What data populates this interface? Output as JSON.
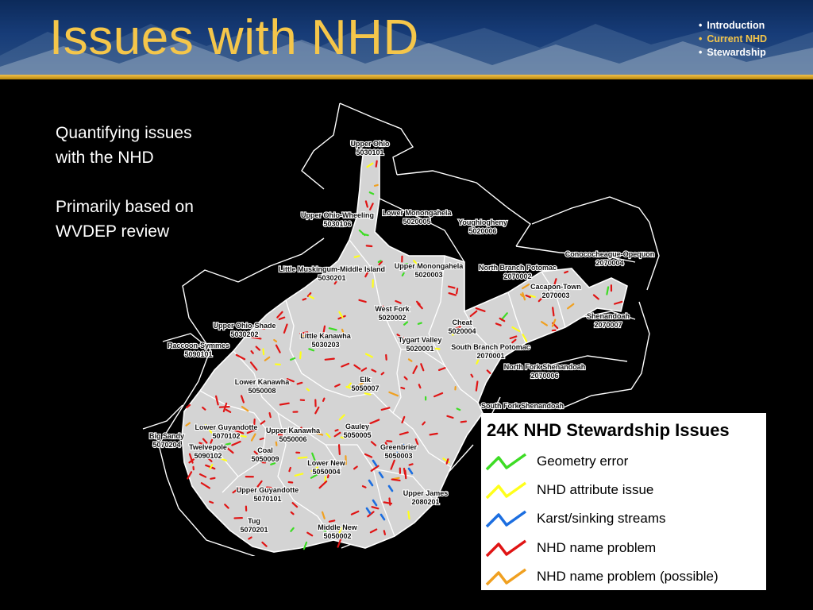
{
  "header": {
    "title": "Issues with NHD",
    "nav": [
      {
        "label": "Introduction",
        "active": false
      },
      {
        "label": "Current NHD",
        "active": true
      },
      {
        "label": "Stewardship",
        "active": false
      }
    ]
  },
  "body": {
    "text1": [
      "Quantifying issues",
      "with the NHD"
    ],
    "text2": [
      "Primarily based on",
      "WVDEP review"
    ]
  },
  "colors": {
    "title": "#f5c64a",
    "map_fill": "#d4d4d4",
    "geometry_error": "#3ddc24",
    "attribute_issue": "#ffff1a",
    "karst": "#1c6ee0",
    "name_problem": "#e01414",
    "name_problem_possible": "#f0a020"
  },
  "map": {
    "regions": [
      {
        "name": "Upper Ohio",
        "code": "5030101"
      },
      {
        "name": "Upper Ohio-Wheeling",
        "code": "5030106"
      },
      {
        "name": "Lower Monongahela",
        "code": "5020005"
      },
      {
        "name": "Youghiogheny",
        "code": "5020006"
      },
      {
        "name": "Conococheague-Opequon",
        "code": "2070004"
      },
      {
        "name": "Little Muskingum-Middle Island",
        "code": "5030201"
      },
      {
        "name": "Upper Monongahela",
        "code": "5020003"
      },
      {
        "name": "North Branch Potomac",
        "code": "2070002"
      },
      {
        "name": "Cacapon-Town",
        "code": "2070003"
      },
      {
        "name": "West Fork",
        "code": "5020002"
      },
      {
        "name": "Shenandoah",
        "code": "2070007"
      },
      {
        "name": "Cheat",
        "code": "5020004"
      },
      {
        "name": "Upper Ohio-Shade",
        "code": "5030202"
      },
      {
        "name": "Little Kanawha",
        "code": "5030203"
      },
      {
        "name": "Tygart Valley",
        "code": "5020001"
      },
      {
        "name": "South Branch Potomac",
        "code": "2070001"
      },
      {
        "name": "Raccoon-Symmes",
        "code": "5090101"
      },
      {
        "name": "North Fork Shenandoah",
        "code": "2070006"
      },
      {
        "name": "Lower Kanawha",
        "code": "5050008"
      },
      {
        "name": "Elk",
        "code": "5050007"
      },
      {
        "name": "South Fork Shenandoah",
        "code": ""
      },
      {
        "name": "Lower Guyandotte",
        "code": "5070102"
      },
      {
        "name": "Upper Kanawha",
        "code": "5050006"
      },
      {
        "name": "Gauley",
        "code": "5050005"
      },
      {
        "name": "Big Sandy",
        "code": "5070204"
      },
      {
        "name": "Twelvepole",
        "code": "5090102"
      },
      {
        "name": "Coal",
        "code": "5050009"
      },
      {
        "name": "Greenbrier",
        "code": "5050003"
      },
      {
        "name": "Lower New",
        "code": "5050004"
      },
      {
        "name": "Upper Guyandotte",
        "code": "5070101"
      },
      {
        "name": "Upper James",
        "code": "2080201"
      },
      {
        "name": "Tug",
        "code": "5070201"
      },
      {
        "name": "Middle New",
        "code": "5050002"
      }
    ]
  },
  "legend": {
    "title": "24K NHD Stewardship Issues",
    "items": [
      {
        "label": "Geometry error",
        "color": "#3ddc24"
      },
      {
        "label": "NHD attribute issue",
        "color": "#ffff1a"
      },
      {
        "label": "Karst/sinking streams",
        "color": "#1c6ee0"
      },
      {
        "label": "NHD name problem",
        "color": "#e01414"
      },
      {
        "label": "NHD name problem (possible)",
        "color": "#f0a020"
      }
    ]
  }
}
